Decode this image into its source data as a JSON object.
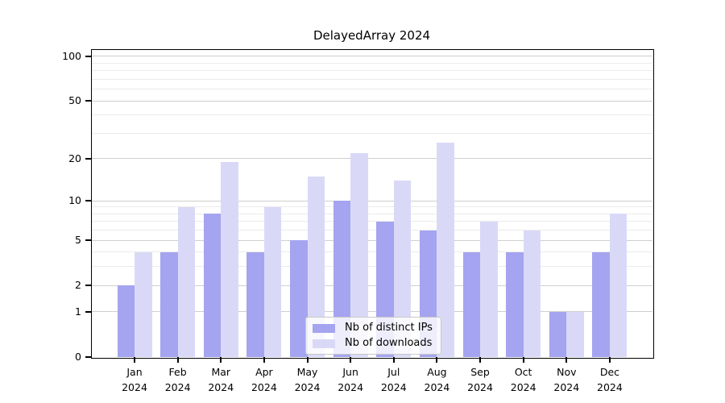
{
  "chart_data": {
    "type": "bar",
    "title": "DelayedArray 2024",
    "categories": [
      "Jan",
      "Feb",
      "Mar",
      "Apr",
      "May",
      "Jun",
      "Jul",
      "Aug",
      "Sep",
      "Oct",
      "Nov",
      "Dec"
    ],
    "year": "2024",
    "series": [
      {
        "name": "Nb of distinct IPs",
        "color": "#a4a4f0",
        "values": [
          2,
          4,
          8,
          4,
          5,
          10,
          7,
          6,
          4,
          4,
          1,
          4
        ]
      },
      {
        "name": "Nb of downloads",
        "color": "#d9d9f7",
        "values": [
          4,
          9,
          19,
          9,
          15,
          22,
          14,
          26,
          7,
          6,
          1,
          8
        ]
      }
    ],
    "xlabel": "",
    "ylabel": "",
    "y_scale": "log10(value+1)",
    "y_tick_values": [
      0,
      1,
      2,
      5,
      10,
      20,
      50,
      100
    ],
    "y_tick_labels": [
      "0",
      "1",
      "2",
      "5",
      "10",
      "20",
      "50",
      "100"
    ],
    "minor_grid_values": [
      3,
      4,
      6,
      7,
      8,
      9,
      30,
      40,
      60,
      70,
      80,
      90
    ],
    "ylim": [
      0,
      112
    ],
    "grid": true,
    "legend_position": "bottom-center"
  },
  "colors": {
    "background": "#ffffff",
    "axis_line": "#000000",
    "grid_major": "#cfcfcf",
    "grid_minor": "#ebebeb",
    "text": "#000000",
    "legend_border": "#c9c9c9"
  }
}
